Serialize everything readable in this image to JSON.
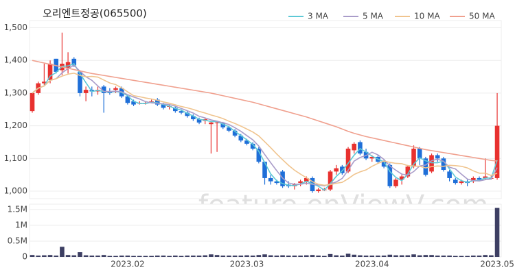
{
  "chart_data": [
    {
      "type": "candlestick",
      "title": "오리엔트정공(065500)",
      "watermark": "feature.enViewV.com",
      "up_color": "#e8312f",
      "down_color": "#1f6fd8",
      "categories": [
        null,
        null,
        null,
        null,
        null,
        null,
        null,
        null,
        null,
        null,
        null,
        null,
        null,
        null,
        null,
        null,
        "2023.02",
        null,
        null,
        null,
        null,
        null,
        null,
        null,
        null,
        null,
        null,
        null,
        null,
        null,
        null,
        null,
        null,
        null,
        null,
        null,
        "2023.03",
        null,
        null,
        null,
        null,
        null,
        null,
        null,
        null,
        null,
        null,
        null,
        null,
        null,
        null,
        null,
        null,
        null,
        null,
        null,
        null,
        "2023.04",
        null,
        null,
        null,
        null,
        null,
        null,
        null,
        null,
        null,
        null,
        null,
        null,
        null,
        null,
        null,
        null,
        null,
        null,
        null,
        null,
        "2023.05"
      ],
      "open": [
        1245,
        1300,
        1330,
        1340,
        1405,
        1370,
        1375,
        1405,
        1365,
        1300,
        1310,
        1305,
        1320,
        1305,
        1310,
        1315,
        1290,
        1275,
        1270,
        1270,
        1275,
        1280,
        1265,
        1260,
        1255,
        1245,
        1240,
        1230,
        1220,
        1215,
        1205,
        1210,
        1210,
        1195,
        1185,
        1170,
        1155,
        1145,
        1130,
        1090,
        1040,
        1030,
        1060,
        1020,
        1015,
        1025,
        1030,
        1040,
        1000,
        1005,
        1005,
        1060,
        1075,
        1060,
        1125,
        1150,
        1120,
        1100,
        1105,
        1090,
        1080,
        1015,
        1035,
        1045,
        1075,
        1130,
        1100,
        1060,
        1110,
        1100,
        1060,
        1035,
        1025,
        1030,
        1030,
        1040,
        1040,
        1040,
        1040
      ],
      "high": [
        1300,
        1335,
        1390,
        1400,
        1405,
        1485,
        1425,
        1410,
        1370,
        1320,
        1320,
        1320,
        1325,
        1315,
        1320,
        1320,
        1295,
        1280,
        1275,
        1275,
        1280,
        1285,
        1270,
        1265,
        1260,
        1250,
        1245,
        1235,
        1225,
        1225,
        1215,
        1215,
        1212,
        1200,
        1190,
        1175,
        1160,
        1150,
        1135,
        1090,
        1050,
        1035,
        1065,
        1030,
        1025,
        1035,
        1045,
        1045,
        1010,
        1010,
        1065,
        1080,
        1080,
        1135,
        1150,
        1155,
        1130,
        1110,
        1110,
        1095,
        1085,
        1040,
        1050,
        1080,
        1140,
        1135,
        1105,
        1115,
        1115,
        1105,
        1065,
        1040,
        1035,
        1035,
        1045,
        1045,
        1100,
        1050,
        1300
      ],
      "low": [
        1240,
        1295,
        1325,
        1330,
        1360,
        1355,
        1360,
        1380,
        1290,
        1275,
        1290,
        1295,
        1240,
        1295,
        1300,
        1285,
        1265,
        1260,
        1265,
        1265,
        1270,
        1260,
        1250,
        1250,
        1240,
        1235,
        1225,
        1215,
        1205,
        1205,
        1115,
        1120,
        1190,
        1180,
        1165,
        1150,
        1140,
        1125,
        1085,
        1020,
        1020,
        1020,
        1010,
        1010,
        1005,
        1015,
        1020,
        995,
        995,
        1000,
        1000,
        1050,
        1050,
        1055,
        1115,
        1110,
        1095,
        1090,
        1085,
        1070,
        1010,
        1010,
        1020,
        1040,
        1070,
        1080,
        1045,
        1055,
        1090,
        1060,
        1030,
        1020,
        1020,
        1015,
        1025,
        1030,
        1035,
        1035,
        1035
      ],
      "close": [
        1300,
        1330,
        1335,
        1390,
        1365,
        1390,
        1395,
        1385,
        1300,
        1310,
        1305,
        1310,
        1300,
        1300,
        1315,
        1290,
        1270,
        1265,
        1270,
        1270,
        1275,
        1265,
        1255,
        1260,
        1245,
        1240,
        1230,
        1220,
        1210,
        1220,
        1210,
        1210,
        1195,
        1185,
        1170,
        1155,
        1145,
        1130,
        1090,
        1040,
        1030,
        1025,
        1015,
        1015,
        1020,
        1030,
        1040,
        1000,
        1005,
        1005,
        1060,
        1070,
        1055,
        1130,
        1145,
        1115,
        1100,
        1105,
        1090,
        1075,
        1015,
        1035,
        1045,
        1075,
        1130,
        1100,
        1050,
        1110,
        1100,
        1065,
        1040,
        1025,
        1030,
        1025,
        1040,
        1035,
        1045,
        1040,
        1200
      ],
      "series": [
        {
          "name": "3 MA",
          "color": "#5ec9d6",
          "values": [
            1300,
            1315,
            1322,
            1352,
            1363,
            1382,
            1383,
            1390,
            1360,
            1332,
            1305,
            1308,
            1305,
            1303,
            1305,
            1302,
            1292,
            1275,
            1268,
            1268,
            1272,
            1270,
            1265,
            1260,
            1253,
            1248,
            1238,
            1230,
            1220,
            1217,
            1213,
            1213,
            1205,
            1197,
            1183,
            1170,
            1157,
            1143,
            1122,
            1087,
            1053,
            1032,
            1023,
            1018,
            1017,
            1022,
            1030,
            1023,
            1015,
            1003,
            1023,
            1045,
            1062,
            1085,
            1110,
            1130,
            1120,
            1107,
            1098,
            1090,
            1060,
            1042,
            1032,
            1052,
            1083,
            1102,
            1093,
            1087,
            1087,
            1092,
            1068,
            1043,
            1032,
            1027,
            1032,
            1033,
            1040,
            1040,
            1095
          ]
        },
        {
          "name": "5 MA",
          "color": "#a99cc9",
          "values": [
            1300,
            1315,
            1322,
            1339,
            1344,
            1362,
            1375,
            1385,
            1367,
            1350,
            1339,
            1322,
            1305,
            1305,
            1306,
            1304,
            1295,
            1288,
            1282,
            1274,
            1270,
            1269,
            1267,
            1265,
            1260,
            1253,
            1246,
            1239,
            1229,
            1224,
            1218,
            1214,
            1209,
            1204,
            1194,
            1183,
            1170,
            1157,
            1138,
            1112,
            1087,
            1063,
            1040,
            1025,
            1021,
            1021,
            1024,
            1021,
            1019,
            1016,
            1022,
            1028,
            1039,
            1064,
            1092,
            1103,
            1109,
            1119,
            1111,
            1097,
            1077,
            1064,
            1052,
            1049,
            1060,
            1077,
            1080,
            1093,
            1098,
            1091,
            1073,
            1068,
            1052,
            1037,
            1032,
            1031,
            1035,
            1037,
            1072
          ]
        },
        {
          "name": "10 MA",
          "color": "#f0c48e",
          "values": [
            1300,
            1315,
            1322,
            1339,
            1344,
            1352,
            1358,
            1361,
            1354,
            1350,
            1351,
            1349,
            1340,
            1331,
            1326,
            1316,
            1304,
            1292,
            1289,
            1285,
            1282,
            1278,
            1273,
            1269,
            1264,
            1259,
            1255,
            1250,
            1244,
            1239,
            1233,
            1228,
            1222,
            1214,
            1207,
            1199,
            1190,
            1181,
            1169,
            1151,
            1133,
            1114,
            1096,
            1079,
            1064,
            1052,
            1041,
            1029,
            1021,
            1018,
            1020,
            1024,
            1027,
            1038,
            1051,
            1059,
            1065,
            1076,
            1085,
            1092,
            1088,
            1085,
            1084,
            1078,
            1077,
            1076,
            1071,
            1075,
            1077,
            1076,
            1079,
            1078,
            1076,
            1071,
            1062,
            1055,
            1055,
            1048,
            1055
          ]
        },
        {
          "name": "50 MA",
          "color": "#f0a08e",
          "values": [
            1400,
            1396,
            1392,
            1388,
            1384,
            1380,
            1376,
            1372,
            1368,
            1364,
            1360,
            1357,
            1354,
            1351,
            1348,
            1345,
            1342,
            1339,
            1336,
            1333,
            1330,
            1327,
            1324,
            1321,
            1318,
            1315,
            1312,
            1309,
            1306,
            1303,
            1300,
            1296,
            1292,
            1288,
            1284,
            1280,
            1276,
            1272,
            1267,
            1262,
            1257,
            1252,
            1247,
            1242,
            1237,
            1232,
            1227,
            1221,
            1215,
            1209,
            1203,
            1197,
            1190,
            1183,
            1177,
            1172,
            1167,
            1163,
            1159,
            1155,
            1151,
            1147,
            1143,
            1139,
            1135,
            1131,
            1127,
            1124,
            1121,
            1118,
            1115,
            1112,
            1109,
            1106,
            1103,
            1100,
            1097,
            1094,
            1092
          ]
        }
      ],
      "ylim": [
        977,
        1522
      ],
      "yticks": [
        {
          "value": 1000,
          "label": "1,000"
        },
        {
          "value": 1100,
          "label": "1,100"
        },
        {
          "value": 1200,
          "label": "1,200"
        },
        {
          "value": 1300,
          "label": "1,300"
        },
        {
          "value": 1400,
          "label": "1,400"
        },
        {
          "value": 1500,
          "label": "1,500"
        }
      ],
      "grid": true,
      "legend": "top-right"
    },
    {
      "type": "bar",
      "color": "#3d3f63",
      "values": [
        60000,
        40000,
        50000,
        60000,
        40000,
        320000,
        60000,
        50000,
        150000,
        50000,
        40000,
        40000,
        60000,
        30000,
        30000,
        40000,
        40000,
        30000,
        30000,
        30000,
        30000,
        40000,
        40000,
        30000,
        40000,
        30000,
        40000,
        40000,
        40000,
        50000,
        80000,
        60000,
        40000,
        40000,
        40000,
        40000,
        50000,
        40000,
        60000,
        80000,
        50000,
        40000,
        50000,
        40000,
        40000,
        40000,
        50000,
        60000,
        40000,
        30000,
        90000,
        50000,
        40000,
        100000,
        70000,
        50000,
        40000,
        40000,
        40000,
        40000,
        70000,
        50000,
        50000,
        50000,
        80000,
        50000,
        60000,
        60000,
        40000,
        40000,
        40000,
        30000,
        30000,
        30000,
        40000,
        40000,
        60000,
        50000,
        1550000
      ],
      "ylim": [
        0,
        1670000
      ],
      "yticks": [
        0,
        {
          "value": 500000,
          "label": "0.5M"
        },
        {
          "value": 1000000,
          "label": "1M"
        },
        {
          "value": 1500000,
          "label": "1.5M"
        }
      ],
      "grid": true
    }
  ]
}
